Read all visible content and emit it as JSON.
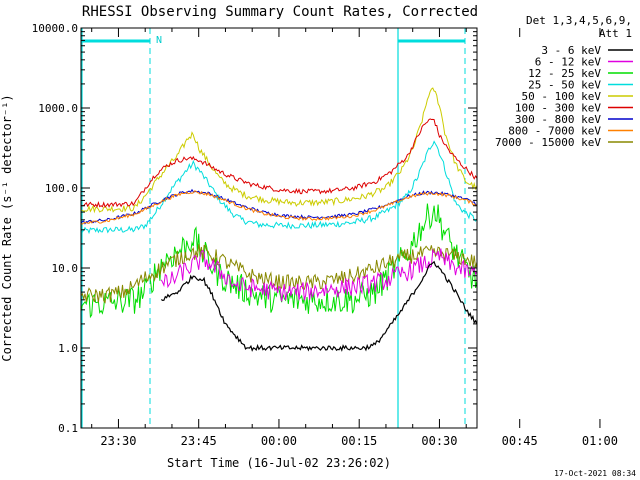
{
  "chart_data": {
    "type": "line",
    "title": "RHESSI Observing Summary Count Rates, Corrected",
    "xlabel": "Start Time (16-Jul-02 23:26:02)",
    "ylabel": "Corrected Count Rate (s⁻¹ detector⁻¹)",
    "yscale": "log",
    "ylim": [
      0.1,
      10000
    ],
    "yticks": [
      "10000.0",
      "1000.0",
      "100.0",
      "10.0",
      "1.0",
      "0.1"
    ],
    "xlim_minutes": [
      23.0,
      73.0
    ],
    "xticks": [
      {
        "label": "23:30",
        "m": 30
      },
      {
        "label": "23:45",
        "m": 45
      },
      {
        "label": "00:00",
        "m": 60
      },
      {
        "label": "00:15",
        "m": 75
      },
      {
        "label": "00:30",
        "m": 90
      },
      {
        "label": "00:45",
        "m": 105
      },
      {
        "label": "01:00",
        "m": 120
      }
    ],
    "legend": {
      "header": [
        "Det 1,3,4,5,6,9,",
        "Att 1"
      ],
      "placement": "right"
    },
    "series": [
      {
        "name": "3 - 6 keV",
        "color": "#000000",
        "points": [
          [
            37,
            null
          ],
          [
            38,
            4
          ],
          [
            41,
            5
          ],
          [
            44,
            8
          ],
          [
            46,
            7
          ],
          [
            48,
            4
          ],
          [
            50,
            2
          ],
          [
            52,
            1.4
          ],
          [
            54,
            1
          ],
          [
            60,
            1
          ],
          [
            70,
            1
          ],
          [
            76,
            1
          ],
          [
            78,
            1.1
          ],
          [
            80,
            1.6
          ],
          [
            83,
            3
          ],
          [
            86,
            6
          ],
          [
            88,
            10
          ],
          [
            89,
            12
          ],
          [
            91,
            8
          ],
          [
            93,
            5
          ],
          [
            95,
            3
          ],
          [
            97,
            2
          ],
          [
            98,
            1.3
          ],
          [
            100,
            1
          ],
          [
            103,
            null
          ]
        ]
      },
      {
        "name": "6 - 12 keV",
        "color": "#e000e0",
        "points": [
          [
            37,
            null
          ],
          [
            38,
            6
          ],
          [
            40,
            7
          ],
          [
            42,
            9
          ],
          [
            44,
            11
          ],
          [
            46,
            13
          ],
          [
            48,
            10
          ],
          [
            50,
            8
          ],
          [
            52,
            6
          ],
          [
            56,
            5.5
          ],
          [
            60,
            5
          ],
          [
            64,
            5
          ],
          [
            70,
            5.5
          ],
          [
            75,
            6
          ],
          [
            80,
            7
          ],
          [
            84,
            9
          ],
          [
            88,
            12
          ],
          [
            90,
            14
          ],
          [
            92,
            11
          ],
          [
            95,
            9
          ],
          [
            98,
            8
          ],
          [
            100,
            7
          ],
          [
            102,
            6
          ],
          [
            103,
            null
          ]
        ]
      },
      {
        "name": "12 - 25 keV",
        "color": "#00dd00",
        "points": [
          [
            23,
            3.5
          ],
          [
            26,
            3.6
          ],
          [
            30,
            3.8
          ],
          [
            33,
            4
          ],
          [
            35,
            5
          ],
          [
            37,
            9
          ],
          [
            39,
            13
          ],
          [
            41,
            16
          ],
          [
            43,
            20
          ],
          [
            44,
            25
          ],
          [
            45,
            18
          ],
          [
            47,
            12
          ],
          [
            49,
            8
          ],
          [
            52,
            6
          ],
          [
            56,
            4.5
          ],
          [
            60,
            4
          ],
          [
            66,
            4
          ],
          [
            70,
            4
          ],
          [
            74,
            4
          ],
          [
            78,
            5
          ],
          [
            81,
            9
          ],
          [
            84,
            15
          ],
          [
            86,
            28
          ],
          [
            88,
            45
          ],
          [
            89,
            55
          ],
          [
            90,
            40
          ],
          [
            92,
            20
          ],
          [
            94,
            12
          ],
          [
            96,
            8
          ],
          [
            98,
            6
          ],
          [
            100,
            5
          ],
          [
            102,
            4.2
          ],
          [
            104,
            4
          ],
          [
            106,
            3.9
          ],
          [
            110,
            3.8
          ],
          [
            114,
            3.8
          ]
        ]
      },
      {
        "name": "25 - 50 keV",
        "color": "#00dddd",
        "points": [
          [
            23,
            29
          ],
          [
            28,
            30
          ],
          [
            33,
            30
          ],
          [
            35,
            34
          ],
          [
            37,
            50
          ],
          [
            39,
            80
          ],
          [
            41,
            120
          ],
          [
            43,
            175
          ],
          [
            44,
            200
          ],
          [
            45,
            170
          ],
          [
            47,
            110
          ],
          [
            49,
            70
          ],
          [
            51,
            50
          ],
          [
            53,
            40
          ],
          [
            56,
            35
          ],
          [
            60,
            34
          ],
          [
            66,
            34
          ],
          [
            70,
            35
          ],
          [
            74,
            37
          ],
          [
            78,
            43
          ],
          [
            81,
            55
          ],
          [
            84,
            80
          ],
          [
            86,
            140
          ],
          [
            88,
            300
          ],
          [
            89,
            400
          ],
          [
            90,
            280
          ],
          [
            92,
            110
          ],
          [
            93,
            65
          ],
          [
            95,
            48
          ],
          [
            97,
            40
          ],
          [
            100,
            36
          ],
          [
            102,
            34
          ],
          [
            104,
            32
          ],
          [
            108,
            31
          ],
          [
            114,
            31
          ]
        ]
      },
      {
        "name": "50 - 100 keV",
        "color": "#cccc00",
        "points": [
          [
            23,
            55
          ],
          [
            28,
            55
          ],
          [
            33,
            56
          ],
          [
            35,
            80
          ],
          [
            37,
            120
          ],
          [
            39,
            180
          ],
          [
            41,
            250
          ],
          [
            43,
            420
          ],
          [
            44,
            480
          ],
          [
            45,
            320
          ],
          [
            47,
            200
          ],
          [
            49,
            130
          ],
          [
            51,
            100
          ],
          [
            54,
            80
          ],
          [
            58,
            70
          ],
          [
            63,
            65
          ],
          [
            68,
            66
          ],
          [
            72,
            70
          ],
          [
            76,
            78
          ],
          [
            80,
            100
          ],
          [
            83,
            170
          ],
          [
            85,
            300
          ],
          [
            87,
            800
          ],
          [
            88,
            1500
          ],
          [
            89,
            1700
          ],
          [
            90,
            1100
          ],
          [
            91,
            500
          ],
          [
            93,
            200
          ],
          [
            95,
            120
          ],
          [
            97,
            100
          ],
          [
            98,
            95
          ],
          [
            99,
            60
          ],
          [
            102,
            58
          ],
          [
            106,
            57
          ],
          [
            114,
            56
          ]
        ]
      },
      {
        "name": "100 - 300 keV",
        "color": "#dd0000",
        "points": [
          [
            23,
            62
          ],
          [
            28,
            62
          ],
          [
            33,
            64
          ],
          [
            35,
            100
          ],
          [
            37,
            150
          ],
          [
            39,
            190
          ],
          [
            41,
            220
          ],
          [
            43,
            235
          ],
          [
            45,
            225
          ],
          [
            47,
            190
          ],
          [
            49,
            160
          ],
          [
            52,
            130
          ],
          [
            55,
            110
          ],
          [
            60,
            95
          ],
          [
            65,
            90
          ],
          [
            70,
            92
          ],
          [
            74,
            100
          ],
          [
            78,
            120
          ],
          [
            81,
            160
          ],
          [
            84,
            250
          ],
          [
            86,
            450
          ],
          [
            87,
            600
          ],
          [
            88,
            700
          ],
          [
            89,
            720
          ],
          [
            90,
            450
          ],
          [
            92,
            280
          ],
          [
            94,
            200
          ],
          [
            96,
            150
          ],
          [
            97,
            130
          ],
          [
            98,
            120
          ],
          [
            99,
            70
          ],
          [
            102,
            66
          ],
          [
            106,
            64
          ],
          [
            114,
            63
          ]
        ]
      },
      {
        "name": "300 - 800 keV",
        "color": "#0000cc",
        "points": [
          [
            23,
            37
          ],
          [
            28,
            40
          ],
          [
            33,
            48
          ],
          [
            36,
            60
          ],
          [
            39,
            75
          ],
          [
            42,
            88
          ],
          [
            44,
            92
          ],
          [
            47,
            85
          ],
          [
            50,
            72
          ],
          [
            53,
            60
          ],
          [
            57,
            50
          ],
          [
            61,
            45
          ],
          [
            66,
            43
          ],
          [
            70,
            44
          ],
          [
            74,
            47
          ],
          [
            78,
            55
          ],
          [
            81,
            65
          ],
          [
            84,
            78
          ],
          [
            87,
            87
          ],
          [
            89,
            88
          ],
          [
            92,
            82
          ],
          [
            95,
            72
          ],
          [
            98,
            60
          ],
          [
            101,
            50
          ],
          [
            104,
            44
          ],
          [
            108,
            41
          ],
          [
            114,
            40
          ]
        ]
      },
      {
        "name": "800 - 7000 keV",
        "color": "#ff8000",
        "points": [
          [
            23,
            36
          ],
          [
            28,
            39
          ],
          [
            33,
            47
          ],
          [
            36,
            58
          ],
          [
            39,
            73
          ],
          [
            42,
            86
          ],
          [
            44,
            90
          ],
          [
            47,
            83
          ],
          [
            50,
            70
          ],
          [
            53,
            58
          ],
          [
            57,
            48
          ],
          [
            61,
            43
          ],
          [
            66,
            41
          ],
          [
            70,
            42
          ],
          [
            74,
            45
          ],
          [
            78,
            53
          ],
          [
            81,
            63
          ],
          [
            84,
            76
          ],
          [
            87,
            85
          ],
          [
            89,
            86
          ],
          [
            92,
            80
          ],
          [
            95,
            70
          ],
          [
            98,
            58
          ],
          [
            101,
            48
          ],
          [
            104,
            42
          ],
          [
            108,
            39
          ],
          [
            114,
            38
          ]
        ]
      },
      {
        "name": "7000 - 15000 keV",
        "color": "#888800",
        "points": [
          [
            23,
            4.5
          ],
          [
            28,
            4.6
          ],
          [
            31,
            5
          ],
          [
            33,
            6
          ],
          [
            35,
            7.5
          ],
          [
            37,
            9
          ],
          [
            39,
            11
          ],
          [
            41,
            13
          ],
          [
            43,
            15
          ],
          [
            45,
            16
          ],
          [
            47,
            15
          ],
          [
            49,
            13
          ],
          [
            52,
            10
          ],
          [
            55,
            8
          ],
          [
            58,
            7
          ],
          [
            62,
            6.5
          ],
          [
            66,
            6.5
          ],
          [
            70,
            7
          ],
          [
            74,
            8
          ],
          [
            78,
            10
          ],
          [
            81,
            12
          ],
          [
            84,
            14
          ],
          [
            87,
            15
          ],
          [
            89,
            15.5
          ],
          [
            92,
            14.5
          ],
          [
            95,
            13
          ],
          [
            97,
            11.5
          ],
          [
            99,
            9
          ],
          [
            101,
            7
          ],
          [
            103,
            6
          ],
          [
            106,
            5
          ],
          [
            110,
            4.7
          ],
          [
            114,
            4.6
          ]
        ]
      }
    ],
    "annotations": [
      {
        "text": "N"
      }
    ],
    "timestamp": "17-Oct-2021 08:34"
  }
}
